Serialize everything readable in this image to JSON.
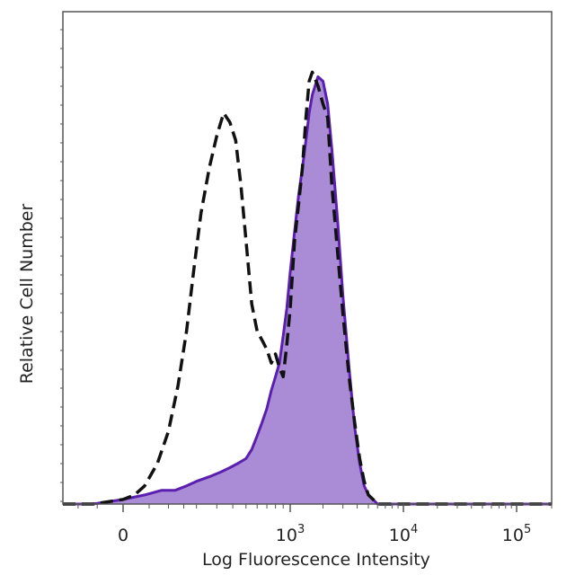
{
  "chart_data": {
    "type": "area",
    "title": "",
    "xlabel": "Log Fluorescence Intensity",
    "ylabel": "Relative Cell Number",
    "x_scale": "biexponential",
    "xlim": [
      -150,
      200000
    ],
    "ylim": [
      0,
      100
    ],
    "x_ticks": [
      {
        "value": 0,
        "base": "0",
        "exp": ""
      },
      {
        "value": 1000,
        "base": "10",
        "exp": "3"
      },
      {
        "value": 10000,
        "base": "10",
        "exp": "4"
      },
      {
        "value": 100000,
        "base": "10",
        "exp": "5"
      }
    ],
    "grid": false,
    "legend": "none",
    "colors": {
      "filled_fill": "#a98bd6",
      "filled_stroke": "#5b1fb0",
      "dashed_stroke": "#111111",
      "axis": "#555555"
    },
    "series": [
      {
        "style": "dashed-unfilled",
        "x": [
          -150,
          -60,
          0,
          20,
          40,
          70,
          100,
          130,
          160,
          190,
          220,
          260,
          300,
          340,
          380,
          420,
          460,
          500,
          550,
          600,
          650,
          700,
          750,
          800,
          850,
          900,
          950,
          1000,
          1100,
          1200,
          1300,
          1400,
          1500,
          1600,
          1800,
          2000,
          2200,
          2400,
          2700,
          3000,
          3400,
          3800,
          4200,
          4600,
          5000,
          5500,
          6000,
          7000,
          9000,
          20000,
          60000,
          200000
        ],
        "y": [
          0,
          0,
          1,
          2,
          4,
          9,
          16,
          26,
          38,
          52,
          64,
          74,
          81,
          86,
          84,
          80,
          70,
          58,
          44,
          38,
          36,
          34,
          31,
          33,
          30,
          28,
          35,
          43,
          58,
          66,
          74,
          85,
          93,
          95,
          92,
          88,
          85,
          70,
          55,
          42,
          28,
          18,
          10,
          5,
          2,
          1,
          0,
          0,
          0,
          0,
          0,
          0
        ]
      },
      {
        "style": "filled-purple",
        "x": [
          -150,
          -60,
          0,
          40,
          80,
          120,
          160,
          200,
          260,
          320,
          380,
          440,
          500,
          550,
          600,
          650,
          700,
          750,
          800,
          850,
          900,
          950,
          1000,
          1100,
          1200,
          1300,
          1400,
          1500,
          1600,
          1800,
          2000,
          2200,
          2400,
          2700,
          3000,
          3400,
          3800,
          4200,
          4600,
          5000,
          5500,
          6000,
          7000,
          9000,
          20000,
          60000,
          200000
        ],
        "y": [
          0,
          0,
          1,
          2,
          3,
          3,
          4,
          5,
          6,
          7,
          8,
          9,
          10,
          12,
          15,
          18,
          21,
          25,
          28,
          31,
          37,
          43,
          51,
          60,
          68,
          74,
          80,
          86,
          90,
          94,
          93,
          88,
          78,
          62,
          46,
          30,
          17,
          9,
          4,
          2,
          1,
          0,
          0,
          0,
          0,
          0,
          0
        ]
      }
    ]
  }
}
